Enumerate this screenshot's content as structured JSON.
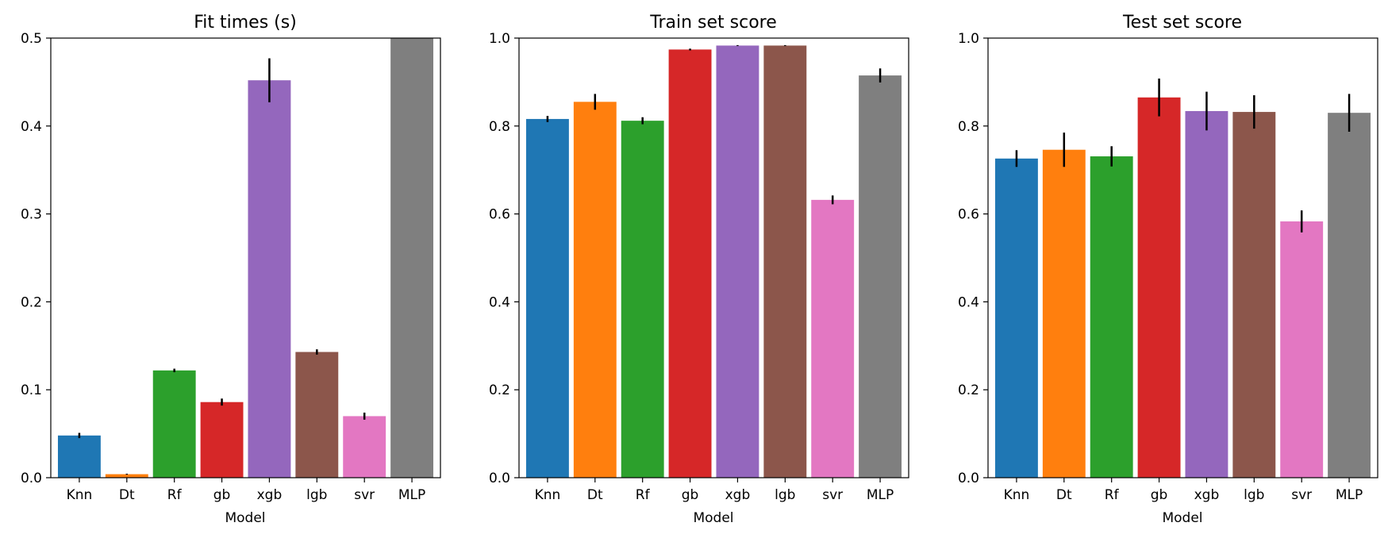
{
  "colors": [
    "#1f77b4",
    "#ff7f0e",
    "#2ca02c",
    "#d62728",
    "#9467bd",
    "#8c564b",
    "#e377c2",
    "#7f7f7f"
  ],
  "chart_data": [
    {
      "type": "bar",
      "title": "Fit times (s)",
      "xlabel": "Model",
      "ylabel": "",
      "categories": [
        "Knn",
        "Dt",
        "Rf",
        "gb",
        "xgb",
        "lgb",
        "svr",
        "MLP"
      ],
      "values": [
        0.048,
        0.004,
        0.122,
        0.086,
        0.452,
        0.143,
        0.07,
        0.5
      ],
      "errors": [
        0.003,
        0.0005,
        0.002,
        0.004,
        0.025,
        0.003,
        0.004,
        0.0
      ],
      "ylim": [
        0,
        0.5
      ],
      "yticks": [
        "0.0",
        "0.1",
        "0.2",
        "0.3",
        "0.4",
        "0.5"
      ],
      "grid": false
    },
    {
      "type": "bar",
      "title": "Train set score",
      "xlabel": "Model",
      "ylabel": "",
      "categories": [
        "Knn",
        "Dt",
        "Rf",
        "gb",
        "xgb",
        "lgb",
        "svr",
        "MLP"
      ],
      "values": [
        0.816,
        0.855,
        0.812,
        0.974,
        0.983,
        0.983,
        0.632,
        0.915
      ],
      "errors": [
        0.007,
        0.018,
        0.008,
        0.002,
        0.001,
        0.001,
        0.01,
        0.016
      ],
      "ylim": [
        0,
        1.0
      ],
      "yticks": [
        "0.0",
        "0.2",
        "0.4",
        "0.6",
        "0.8",
        "1.0"
      ],
      "grid": false
    },
    {
      "type": "bar",
      "title": "Test set score",
      "xlabel": "Model",
      "ylabel": "",
      "categories": [
        "Knn",
        "Dt",
        "Rf",
        "gb",
        "xgb",
        "lgb",
        "svr",
        "MLP"
      ],
      "values": [
        0.726,
        0.746,
        0.731,
        0.865,
        0.834,
        0.832,
        0.583,
        0.83
      ],
      "errors": [
        0.019,
        0.039,
        0.023,
        0.043,
        0.044,
        0.038,
        0.025,
        0.043
      ],
      "ylim": [
        0,
        1.0
      ],
      "yticks": [
        "0.0",
        "0.2",
        "0.4",
        "0.6",
        "0.8",
        "1.0"
      ],
      "grid": false
    }
  ]
}
